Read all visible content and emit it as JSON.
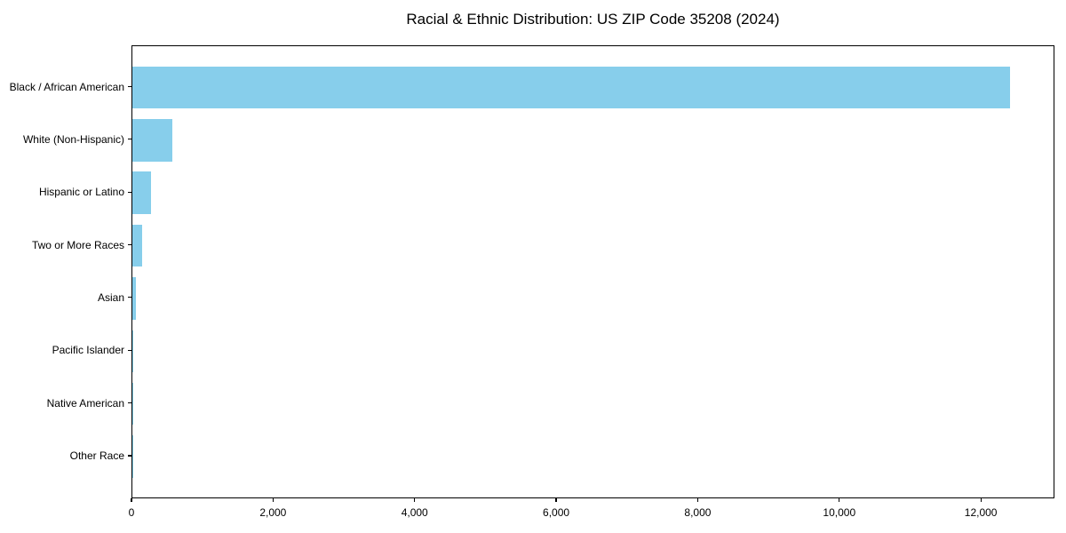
{
  "chart_data": {
    "type": "bar",
    "orientation": "horizontal",
    "title": "Racial & Ethnic Distribution: US ZIP Code 35208 (2024)",
    "categories": [
      "Black / African American",
      "White (Non-Hispanic)",
      "Hispanic or Latino",
      "Two or More Races",
      "Asian",
      "Pacific Islander",
      "Native American",
      "Other Race"
    ],
    "values": [
      12400,
      560,
      265,
      140,
      50,
      10,
      4,
      2
    ],
    "xlabel": "",
    "ylabel": "",
    "xlim": [
      0,
      13040
    ],
    "xticks": [
      0,
      2000,
      4000,
      6000,
      8000,
      10000,
      12000
    ],
    "xtick_labels": [
      "0",
      "2,000",
      "4,000",
      "6,000",
      "8,000",
      "10,000",
      "12,000"
    ],
    "bar_color": "#87CEEB",
    "text_color": "#000000",
    "grid": false,
    "legend": null
  }
}
